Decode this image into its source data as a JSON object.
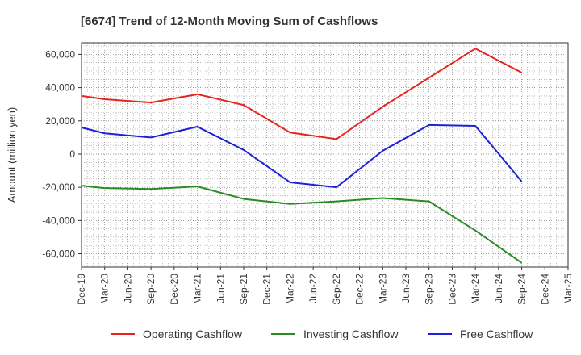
{
  "chart_data": {
    "type": "line",
    "title": "[6674]  Trend of 12-Month Moving Sum of Cashflows",
    "ylabel": "Amount (million yen)",
    "xlabel": "",
    "categories": [
      "Dec-19",
      "Mar-20",
      "Jun-20",
      "Sep-20",
      "Dec-20",
      "Mar-21",
      "Jun-21",
      "Sep-21",
      "Dec-21",
      "Mar-22",
      "Jun-22",
      "Sep-22",
      "Dec-22",
      "Mar-23",
      "Jun-23",
      "Sep-23",
      "Dec-23",
      "Mar-24",
      "Jun-24",
      "Sep-24",
      "Dec-24",
      "Mar-25"
    ],
    "ylim": [
      -68000,
      67000
    ],
    "yticks": [
      60000,
      40000,
      20000,
      0,
      -20000,
      -40000,
      -60000
    ],
    "ytick_labels": [
      "60,000",
      "40,000",
      "20,000",
      "0",
      "-20,000",
      "-40,000",
      "-60,000"
    ],
    "grid": true,
    "legend_position": "bottom",
    "series": [
      {
        "name": "Operating Cashflow",
        "color": "#e8231f",
        "values": [
          35000,
          33000,
          null,
          31000,
          null,
          36000,
          null,
          29500,
          null,
          13000,
          null,
          9000,
          null,
          28500,
          null,
          46000,
          null,
          63500,
          null,
          49000,
          null,
          null
        ]
      },
      {
        "name": "Investing Cashflow",
        "color": "#2a8a24",
        "values": [
          -19000,
          -20500,
          null,
          -21000,
          null,
          -19500,
          null,
          -27000,
          null,
          -30000,
          null,
          -28500,
          null,
          -26500,
          null,
          -28500,
          null,
          -46000,
          null,
          -65500,
          null,
          null
        ]
      },
      {
        "name": "Free Cashflow",
        "color": "#1d22d8",
        "values": [
          16000,
          12500,
          null,
          10000,
          null,
          16500,
          null,
          2500,
          null,
          -17000,
          null,
          -20000,
          null,
          2000,
          null,
          17500,
          null,
          17000,
          null,
          -16500,
          null,
          null
        ]
      }
    ]
  }
}
